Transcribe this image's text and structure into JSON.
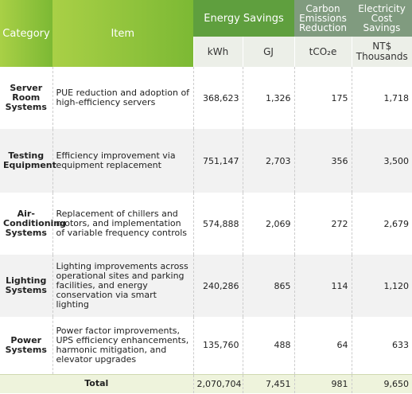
{
  "header": {
    "category": "Category",
    "item": "Item",
    "energy_savings": "Energy Savings",
    "carbon": "Carbon Emissions Reduction",
    "cost": "Electricity Cost Savings",
    "units": [
      "kWh",
      "GJ",
      "tCO₂e",
      "NT$ Thousands"
    ]
  },
  "rows": [
    [
      "Server Room Systems",
      "PUE reduction and adoption of high-efficiency servers",
      "368,623",
      "1,326",
      "175",
      "1,718"
    ],
    [
      "Testing Equipment",
      "Efficiency improvement via equipment replacement",
      "751,147",
      "2,703",
      "356",
      "3,500"
    ],
    [
      "Air-Conditioning Systems",
      "Replacement of chillers and motors, and implementation of variable frequency controls",
      "574,888",
      "2,069",
      "272",
      "2,679"
    ],
    [
      "Lighting Systems",
      "Lighting improvements across operational sites and parking facilities, and energy conservation via smart lighting",
      "240,286",
      "865",
      "114",
      "1,120"
    ],
    [
      "Power Systems",
      "Power factor improvements, UPS efficiency enhancements, harmonic mitigation, and elevator upgrades",
      "135,760",
      "488",
      "64",
      "633"
    ]
  ],
  "total": {
    "label": "Total",
    "values": [
      "2,070,704",
      "7,451",
      "981",
      "9,650"
    ]
  }
}
